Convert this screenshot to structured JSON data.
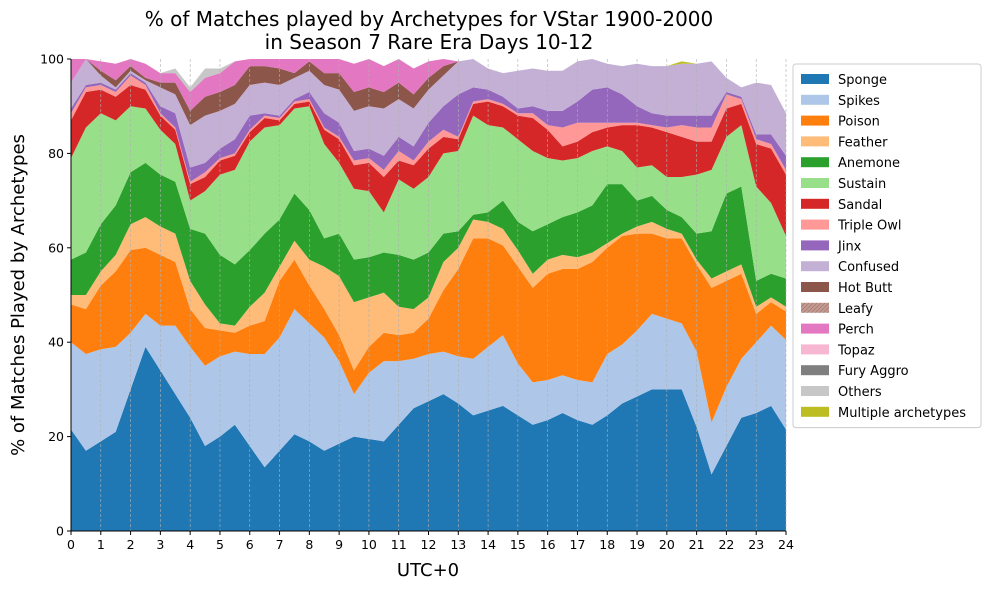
{
  "chart_data": {
    "type": "area",
    "stacked": true,
    "title": [
      "% of Matches played by Archetypes for VStar 1900-2000",
      "in Season 7 Rare Era Days 10-12"
    ],
    "xlabel": "UTC+0",
    "ylabel": "% of Matches Played by Archetypes",
    "xlim": [
      0,
      24
    ],
    "ylim": [
      0,
      100
    ],
    "xticks": [
      "0",
      "1",
      "2",
      "3",
      "4",
      "5",
      "6",
      "7",
      "8",
      "9",
      "10",
      "11",
      "12",
      "13",
      "14",
      "15",
      "16",
      "17",
      "18",
      "19",
      "20",
      "21",
      "22",
      "23",
      "24"
    ],
    "yticks": [
      "0",
      "20",
      "40",
      "60",
      "80",
      "100"
    ],
    "grid": "vertical dashed",
    "legend_position": "outside right",
    "x": [
      0,
      0.5,
      1,
      1.5,
      2,
      2.5,
      3,
      3.5,
      4,
      4.5,
      5,
      5.5,
      6,
      6.5,
      7,
      7.5,
      8,
      8.5,
      9,
      9.5,
      10,
      10.5,
      11,
      11.5,
      12,
      12.5,
      13,
      13.5,
      14,
      14.5,
      15,
      15.5,
      16,
      16.5,
      17,
      17.5,
      18,
      18.5,
      19,
      19.5,
      20,
      20.5,
      21,
      21.5,
      22,
      22.5,
      23,
      23.5,
      24
    ],
    "series": [
      {
        "name": "Sponge",
        "color": "#1f77b4",
        "values": [
          21.5,
          17,
          19,
          21,
          30,
          39,
          34,
          29,
          24,
          18,
          20,
          22.5,
          18,
          13.5,
          17,
          20.5,
          19,
          17,
          18.5,
          20,
          19.5,
          19,
          22.5,
          26,
          27.5,
          29,
          27,
          24.5,
          25.5,
          26.5,
          24.5,
          22.5,
          23.5,
          25,
          23.5,
          22.5,
          24.5,
          27,
          28.5,
          30,
          30,
          30,
          22,
          12,
          18,
          24,
          25,
          26.5,
          21.5
        ]
      },
      {
        "name": "Spikes",
        "color": "#aec7e8",
        "values": [
          18.5,
          20.5,
          19.5,
          18,
          12,
          7,
          9.5,
          14.5,
          15,
          17,
          17,
          15.5,
          19.5,
          24,
          24,
          26.5,
          25,
          24,
          17.5,
          9,
          14,
          17,
          13.5,
          10.5,
          10,
          9,
          10,
          12,
          13.5,
          15,
          11,
          9,
          8.5,
          8,
          8.5,
          9,
          13,
          12.5,
          14,
          16,
          15,
          14,
          16,
          11,
          12.5,
          12.5,
          15,
          17,
          19
        ]
      },
      {
        "name": "Poison",
        "color": "#ff7f0e",
        "values": [
          8,
          9.5,
          13.5,
          16,
          17.5,
          14,
          15,
          13.5,
          8,
          8,
          5.5,
          4,
          6,
          7,
          12,
          10.5,
          8,
          6,
          5.5,
          5,
          5.5,
          6,
          5.5,
          5.5,
          7.5,
          13,
          18.5,
          25.5,
          23,
          19,
          20.5,
          20,
          22.5,
          22.5,
          23.5,
          25.5,
          22.5,
          23,
          20.5,
          17,
          17,
          18,
          18.5,
          28.5,
          22.5,
          18,
          6,
          5,
          6
        ]
      },
      {
        "name": "Feather",
        "color": "#ffbb78",
        "values": [
          2,
          3,
          3,
          3.5,
          5.5,
          6.5,
          6,
          6,
          6,
          5,
          1.5,
          1.5,
          4,
          6,
          3,
          4,
          5.5,
          9,
          12.5,
          14.5,
          10.5,
          8.5,
          6,
          5,
          4.5,
          6,
          4.5,
          4,
          3.5,
          3.5,
          3.5,
          3,
          3,
          3,
          2.5,
          2,
          1,
          0.5,
          1.5,
          2.5,
          2,
          1,
          1,
          2,
          2,
          2,
          1.5,
          1,
          1
        ]
      },
      {
        "name": "Anemone",
        "color": "#2ca02c",
        "values": [
          7.5,
          9,
          10,
          10.5,
          11,
          11.5,
          11,
          11,
          11,
          15,
          14.5,
          13,
          12,
          12.5,
          10,
          10,
          10.5,
          6,
          9,
          9,
          8.5,
          8.5,
          11,
          10.5,
          9.5,
          6,
          3.5,
          1,
          2,
          6,
          6,
          9,
          7.5,
          8,
          9.5,
          10,
          12.5,
          10.5,
          5.5,
          5.5,
          4,
          3.5,
          5.5,
          10,
          16.5,
          16.5,
          5.5,
          5,
          6
        ]
      },
      {
        "name": "Sustain",
        "color": "#98df8a",
        "values": [
          21.5,
          26.5,
          23.5,
          18,
          14,
          11.5,
          9.5,
          8,
          6,
          9,
          17,
          20,
          23,
          22.5,
          20,
          18,
          22,
          20,
          15,
          15,
          14,
          8.5,
          16,
          15,
          16,
          17,
          17,
          21,
          18.5,
          15.5,
          17.5,
          17,
          14,
          12,
          11.5,
          11.5,
          8,
          7,
          7,
          6.5,
          7,
          8.5,
          12.5,
          13,
          12,
          13,
          20,
          15,
          9
        ]
      },
      {
        "name": "Sandal",
        "color": "#d62728",
        "values": [
          8,
          7.5,
          5,
          5,
          4.5,
          4,
          3,
          3,
          3.5,
          3,
          3,
          3,
          2,
          2,
          1,
          1,
          1,
          3,
          5,
          5,
          6,
          7.5,
          4,
          5,
          6,
          3.5,
          2.5,
          2.5,
          5,
          4.5,
          5,
          7,
          6,
          3,
          3.5,
          4,
          4,
          5.5,
          9,
          8,
          9.5,
          8.5,
          7,
          6,
          6,
          4.5,
          9,
          11.5,
          13
        ]
      },
      {
        "name": "Triple Owl",
        "color": "#ff9896",
        "values": [
          1.5,
          1,
          1,
          1,
          2,
          1,
          0.5,
          0.5,
          0.5,
          1,
          0.5,
          0.5,
          0.5,
          0.5,
          0.5,
          0.5,
          0.5,
          0.5,
          0.5,
          1,
          1,
          1.5,
          2,
          1,
          1.5,
          1.5,
          0.5,
          0.5,
          0.5,
          0.5,
          0.5,
          1,
          1,
          4,
          4,
          2,
          1,
          0.5,
          0.5,
          0.5,
          1,
          2.5,
          3,
          3,
          3,
          1,
          1,
          1,
          1
        ]
      },
      {
        "name": "Jinx",
        "color": "#9467bd",
        "values": [
          1,
          0.5,
          0.5,
          0.5,
          0.5,
          0.5,
          1.5,
          3,
          3,
          2,
          2,
          3,
          3,
          0.5,
          0.5,
          0.5,
          1.5,
          3,
          3,
          2,
          2,
          3,
          3,
          3,
          4,
          5,
          9,
          3,
          2,
          1.5,
          1,
          1.5,
          3,
          3.5,
          4.5,
          7,
          7.5,
          6,
          3.5,
          2.5,
          2.5,
          2,
          2.5,
          2.5,
          0.5,
          0.5,
          1,
          2,
          3
        ]
      },
      {
        "name": "Confused",
        "color": "#c5b0d5",
        "values": [
          5.5,
          5.5,
          1.5,
          0.5,
          0.5,
          0.5,
          4,
          4,
          9,
          10,
          8,
          7.5,
          6.5,
          6.5,
          6.5,
          4.5,
          4.5,
          6,
          7,
          8.5,
          9,
          10,
          8,
          8,
          7,
          6.5,
          7,
          6.5,
          4.5,
          5,
          8,
          8,
          8.5,
          8.5,
          8.5,
          6.5,
          5,
          6,
          9,
          10,
          10.5,
          11,
          11,
          11.5,
          3,
          2,
          11,
          10.5,
          9
        ]
      },
      {
        "name": "Hot Butt",
        "color": "#8c564b",
        "values": [
          0,
          0,
          1,
          1.5,
          1,
          0.5,
          1,
          2.5,
          3,
          4,
          4,
          4,
          4,
          3.5,
          3.5,
          1,
          2,
          2.5,
          3.5,
          4,
          4,
          3.5,
          3.5,
          3,
          2.5,
          2,
          0,
          0,
          0,
          0,
          0,
          0,
          0,
          0,
          0,
          0,
          0,
          0,
          0,
          0,
          0,
          0,
          0,
          0,
          0,
          0,
          0,
          0,
          0
        ]
      },
      {
        "name": "Leafy",
        "color": "#c49c94",
        "pattern": true,
        "values": [
          0,
          0,
          0,
          0,
          0,
          0,
          0,
          0,
          0,
          0,
          0,
          0,
          0,
          0,
          0,
          0,
          0,
          0,
          0,
          0,
          0,
          0,
          0,
          0,
          0,
          0,
          0,
          0,
          0,
          0,
          0,
          0,
          0,
          0,
          0,
          0,
          0,
          0,
          0,
          0,
          0,
          0,
          0,
          0,
          0,
          0,
          0,
          0,
          0
        ]
      },
      {
        "name": "Perch",
        "color": "#e377c2",
        "values": [
          5,
          0,
          2,
          3.5,
          2,
          3,
          2,
          2,
          4,
          4,
          4,
          5,
          5,
          5,
          5,
          4,
          4,
          5,
          6,
          6,
          6,
          5.5,
          5,
          5.5,
          3.5,
          1.5,
          0,
          0,
          0,
          0,
          0,
          0,
          0,
          0,
          0,
          0,
          0,
          0,
          0,
          0,
          0,
          0,
          0,
          0,
          0,
          0,
          0,
          0,
          0
        ]
      },
      {
        "name": "Topaz",
        "color": "#f7b6d2",
        "values": [
          0,
          0,
          0,
          0,
          0,
          0,
          0,
          0,
          0,
          0,
          0,
          0,
          0,
          0,
          0,
          0,
          0,
          0,
          0,
          0,
          0,
          0,
          0,
          0,
          0,
          0,
          0,
          0,
          0,
          0,
          0,
          0,
          0,
          0,
          0,
          0,
          0,
          0,
          0,
          0,
          0,
          0,
          0,
          0,
          0,
          0,
          0,
          0,
          0
        ]
      },
      {
        "name": "Fury Aggro",
        "color": "#7f7f7f",
        "values": [
          0,
          0,
          0,
          0,
          0,
          0,
          0,
          0,
          0,
          0,
          0,
          0,
          0,
          0,
          0,
          0,
          0,
          0,
          0,
          0,
          0,
          0,
          0,
          0,
          0,
          0,
          0,
          0,
          0,
          0,
          0,
          0,
          0,
          0,
          0,
          0,
          0,
          0,
          0,
          0,
          0,
          0,
          0,
          0,
          0,
          0,
          0,
          0,
          0
        ]
      },
      {
        "name": "Others",
        "color": "#c7c7c7",
        "values": [
          0,
          0,
          0,
          0,
          0,
          0,
          0,
          1,
          1,
          2,
          1,
          0,
          0,
          0,
          0,
          0,
          0,
          0,
          0,
          0,
          0,
          0,
          0,
          0,
          0,
          0,
          0,
          0,
          0,
          0,
          0,
          0,
          0,
          0,
          0,
          0,
          0,
          0,
          0,
          0,
          0,
          0,
          0,
          0,
          0,
          0,
          0,
          0,
          0
        ]
      },
      {
        "name": "Multiple archetypes",
        "color": "#bcbd22",
        "values": [
          0,
          0,
          0,
          0,
          0,
          0,
          0,
          0,
          0,
          0,
          0,
          0,
          0,
          0,
          0,
          0,
          0,
          0,
          0,
          0,
          0,
          0,
          0,
          0,
          0,
          0,
          0,
          0,
          0,
          0,
          0,
          0,
          0,
          0,
          0,
          0,
          0,
          0,
          0,
          0,
          0,
          0.5,
          0,
          0,
          0,
          0,
          0,
          0,
          0
        ]
      }
    ]
  }
}
